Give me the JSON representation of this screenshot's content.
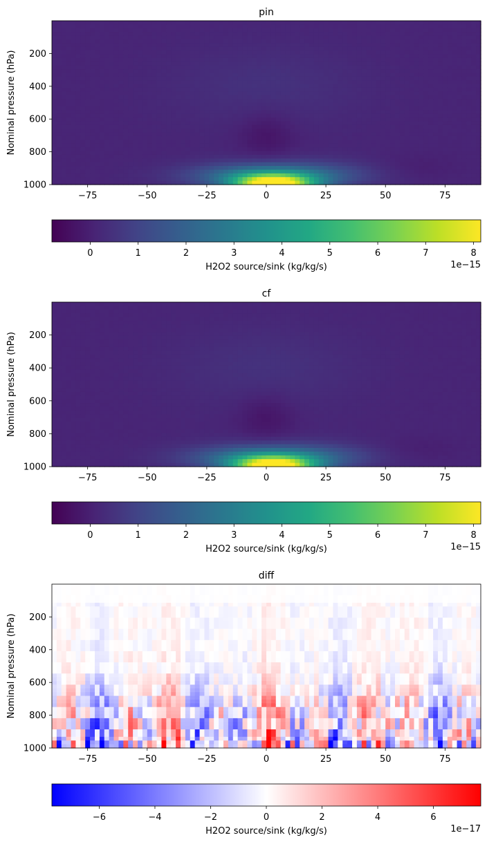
{
  "chart_data": [
    {
      "type": "heatmap",
      "title": "pin",
      "xlabel": "",
      "ylabel": "Nominal pressure (hPa)",
      "x_ticks": [
        -75,
        -50,
        -25,
        0,
        25,
        50,
        75
      ],
      "y_ticks": [
        200,
        400,
        600,
        800,
        1000
      ],
      "xlim": [
        -90,
        90
      ],
      "ylim": [
        1000,
        0
      ],
      "colormap": "viridis",
      "colorbar": {
        "label": "H2O2 source/sink (kg/kg/s)",
        "ticks": [
          0,
          1,
          2,
          3,
          4,
          5,
          6,
          7,
          8
        ],
        "range": [
          -0.8,
          8.15
        ],
        "offset_text": "1e−15",
        "orientation": "horizontal"
      },
      "tick_labels_x": [
        "−75",
        "−50",
        "−25",
        "0",
        "25",
        "50",
        "75"
      ],
      "tick_labels_y": [
        "200",
        "400",
        "600",
        "800",
        "1000"
      ],
      "tick_labels_cb": [
        "0",
        "1",
        "2",
        "3",
        "4",
        "5",
        "6",
        "7",
        "8"
      ],
      "field_description": "near-surface maximum centered on equator (~8e-15 at 1000 hPa), background ~0, weak negative column 500-900 hPa near equator"
    },
    {
      "type": "heatmap",
      "title": "cf",
      "xlabel": "",
      "ylabel": "Nominal pressure (hPa)",
      "x_ticks": [
        -75,
        -50,
        -25,
        0,
        25,
        50,
        75
      ],
      "y_ticks": [
        200,
        400,
        600,
        800,
        1000
      ],
      "xlim": [
        -90,
        90
      ],
      "ylim": [
        1000,
        0
      ],
      "colormap": "viridis",
      "colorbar": {
        "label": "H2O2 source/sink (kg/kg/s)",
        "ticks": [
          0,
          1,
          2,
          3,
          4,
          5,
          6,
          7,
          8
        ],
        "range": [
          -0.8,
          8.15
        ],
        "offset_text": "1e−15",
        "orientation": "horizontal"
      },
      "tick_labels_x": [
        "−75",
        "−50",
        "−25",
        "0",
        "25",
        "50",
        "75"
      ],
      "tick_labels_y": [
        "200",
        "400",
        "600",
        "800",
        "1000"
      ],
      "tick_labels_cb": [
        "0",
        "1",
        "2",
        "3",
        "4",
        "5",
        "6",
        "7",
        "8"
      ]
    },
    {
      "type": "heatmap",
      "title": "diff",
      "xlabel": "",
      "ylabel": "Nominal pressure (hPa)",
      "x_ticks": [
        -75,
        -50,
        -25,
        0,
        25,
        50,
        75
      ],
      "y_ticks": [
        200,
        400,
        600,
        800,
        1000
      ],
      "xlim": [
        -90,
        90
      ],
      "ylim": [
        1000,
        0
      ],
      "colormap": "bwr",
      "colorbar": {
        "label": "H2O2 source/sink (kg/kg/s)",
        "ticks": [
          -6,
          -4,
          -2,
          0,
          2,
          4,
          6
        ],
        "range": [
          -7.7,
          7.7
        ],
        "offset_text": "1e−17",
        "orientation": "horizontal"
      },
      "tick_labels_x": [
        "−75",
        "−50",
        "−25",
        "0",
        "25",
        "50",
        "75"
      ],
      "tick_labels_y": [
        "200",
        "400",
        "600",
        "800",
        "1000"
      ],
      "tick_labels_cb": [
        "−6",
        "−4",
        "−2",
        "0",
        "2",
        "4",
        "6"
      ]
    }
  ]
}
